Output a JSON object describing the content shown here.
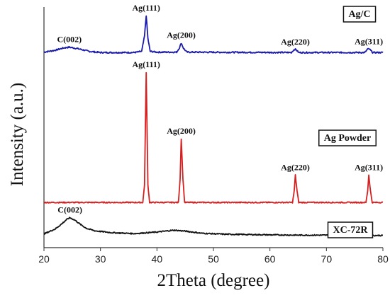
{
  "chart_data": {
    "type": "line",
    "xlabel": "2Theta (degree)",
    "ylabel": "Intensity (a.u.)",
    "xlim": [
      20,
      80
    ],
    "x_ticks": [
      20,
      30,
      40,
      50,
      60,
      70,
      80
    ],
    "grid": false,
    "y_tick_labels": false,
    "series": [
      {
        "name": "Ag/C",
        "color": "#1a1aaa",
        "baseline": 0.35,
        "points": [
          [
            20,
            0.4
          ],
          [
            22,
            0.65
          ],
          [
            23.5,
            0.95
          ],
          [
            24.5,
            1.05
          ],
          [
            26,
            0.85
          ],
          [
            28,
            0.5
          ],
          [
            30,
            0.35
          ],
          [
            36,
            0.35
          ],
          [
            37.3,
            0.5
          ],
          [
            37.8,
            2.5
          ],
          [
            38.1,
            5.2
          ],
          [
            38.4,
            2.2
          ],
          [
            38.8,
            0.5
          ],
          [
            40,
            0.4
          ],
          [
            43.5,
            0.4
          ],
          [
            44.0,
            1.0
          ],
          [
            44.3,
            1.6
          ],
          [
            44.7,
            0.9
          ],
          [
            45.3,
            0.4
          ],
          [
            63.8,
            0.35
          ],
          [
            64.3,
            0.75
          ],
          [
            64.6,
            0.75
          ],
          [
            65.1,
            0.35
          ],
          [
            76.8,
            0.35
          ],
          [
            77.3,
            0.8
          ],
          [
            77.6,
            0.8
          ],
          [
            78.2,
            0.35
          ],
          [
            80,
            0.35
          ]
        ]
      },
      {
        "name": "Ag Powder",
        "color": "#d42020",
        "baseline": 0.1,
        "points": [
          [
            20,
            0.1
          ],
          [
            37.5,
            0.1
          ],
          [
            37.8,
            3.0
          ],
          [
            38.1,
            21.5
          ],
          [
            38.4,
            3.0
          ],
          [
            38.7,
            0.1
          ],
          [
            43.8,
            0.1
          ],
          [
            44.1,
            4.0
          ],
          [
            44.3,
            10.6
          ],
          [
            44.6,
            4.0
          ],
          [
            44.9,
            0.1
          ],
          [
            64.0,
            0.1
          ],
          [
            64.3,
            2.0
          ],
          [
            64.5,
            4.6
          ],
          [
            64.8,
            2.0
          ],
          [
            65.1,
            0.1
          ],
          [
            77.0,
            0.1
          ],
          [
            77.3,
            2.0
          ],
          [
            77.5,
            4.6
          ],
          [
            77.8,
            2.0
          ],
          [
            78.1,
            0.1
          ],
          [
            80,
            0.1
          ]
        ]
      },
      {
        "name": "XC-72R",
        "color": "#111111",
        "baseline": 0.2,
        "points": [
          [
            20,
            0.5
          ],
          [
            21,
            0.9
          ],
          [
            22,
            1.3
          ],
          [
            23,
            2.0
          ],
          [
            24,
            2.8
          ],
          [
            24.6,
            3.1
          ],
          [
            25.5,
            2.7
          ],
          [
            26.5,
            2.0
          ],
          [
            27.5,
            1.4
          ],
          [
            29,
            1.0
          ],
          [
            32,
            0.7
          ],
          [
            36,
            0.55
          ],
          [
            40,
            0.8
          ],
          [
            43,
            1.1
          ],
          [
            45,
            0.95
          ],
          [
            48,
            0.6
          ],
          [
            52,
            0.45
          ],
          [
            56,
            0.4
          ],
          [
            60,
            0.35
          ],
          [
            65,
            0.3
          ],
          [
            70,
            0.3
          ],
          [
            75,
            0.25
          ],
          [
            80,
            0.25
          ]
        ]
      }
    ],
    "peak_labels": [
      {
        "series": 0,
        "text": "C(002)",
        "x": 24.5
      },
      {
        "series": 0,
        "text": "Ag(111)",
        "x": 38.1
      },
      {
        "series": 0,
        "text": "Ag(200)",
        "x": 44.3
      },
      {
        "series": 0,
        "text": "Ag(220)",
        "x": 64.5
      },
      {
        "series": 0,
        "text": "Ag(311)",
        "x": 77.5
      },
      {
        "series": 1,
        "text": "Ag(111)",
        "x": 38.1
      },
      {
        "series": 1,
        "text": "Ag(200)",
        "x": 44.3
      },
      {
        "series": 1,
        "text": "Ag(220)",
        "x": 64.5
      },
      {
        "series": 1,
        "text": "Ag(311)",
        "x": 77.5
      },
      {
        "series": 2,
        "text": "C(002)",
        "x": 24.6
      }
    ],
    "legend_boxes": [
      {
        "series": 0,
        "text": "Ag/C"
      },
      {
        "series": 1,
        "text": "Ag Powder"
      },
      {
        "series": 2,
        "text": "XC-72R"
      }
    ]
  }
}
